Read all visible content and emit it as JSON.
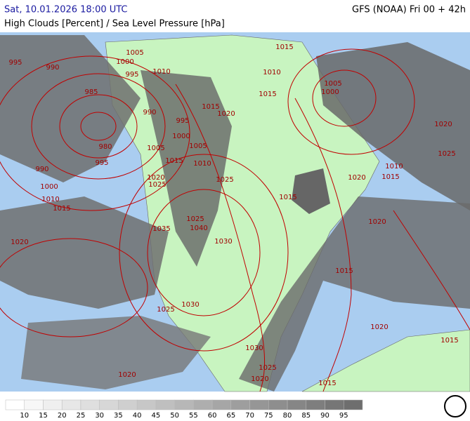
{
  "header": {
    "datetime": "Sat, 10.01.2026 18:00 UTC",
    "model": "GFS (NOAA) Fri 00 + 42h",
    "title": "High Clouds [Percent] / Sea Level Pressure [hPa]"
  },
  "isobar_labels": [
    "995",
    "990",
    "1005",
    "1000",
    "995",
    "1010",
    "985",
    "990",
    "995",
    "980",
    "1000",
    "1005",
    "1005",
    "995",
    "990",
    "1015",
    "1010",
    "1015",
    "1020",
    "1000",
    "1010",
    "1015",
    "1020",
    "1025",
    "1025",
    "1015",
    "1025",
    "1035",
    "1040",
    "1030",
    "1020",
    "1025",
    "1030",
    "1030",
    "1025",
    "1020",
    "1020",
    "1015",
    "1015",
    "1020",
    "1020",
    "1015",
    "1015",
    "1010",
    "1015",
    "1005",
    "1000",
    "1020",
    "1025",
    "1010",
    "1015",
    "1020"
  ],
  "legend": {
    "labels": [
      10,
      15,
      20,
      25,
      30,
      35,
      40,
      45,
      50,
      55,
      60,
      65,
      70,
      75,
      80,
      85,
      90,
      95
    ]
  }
}
